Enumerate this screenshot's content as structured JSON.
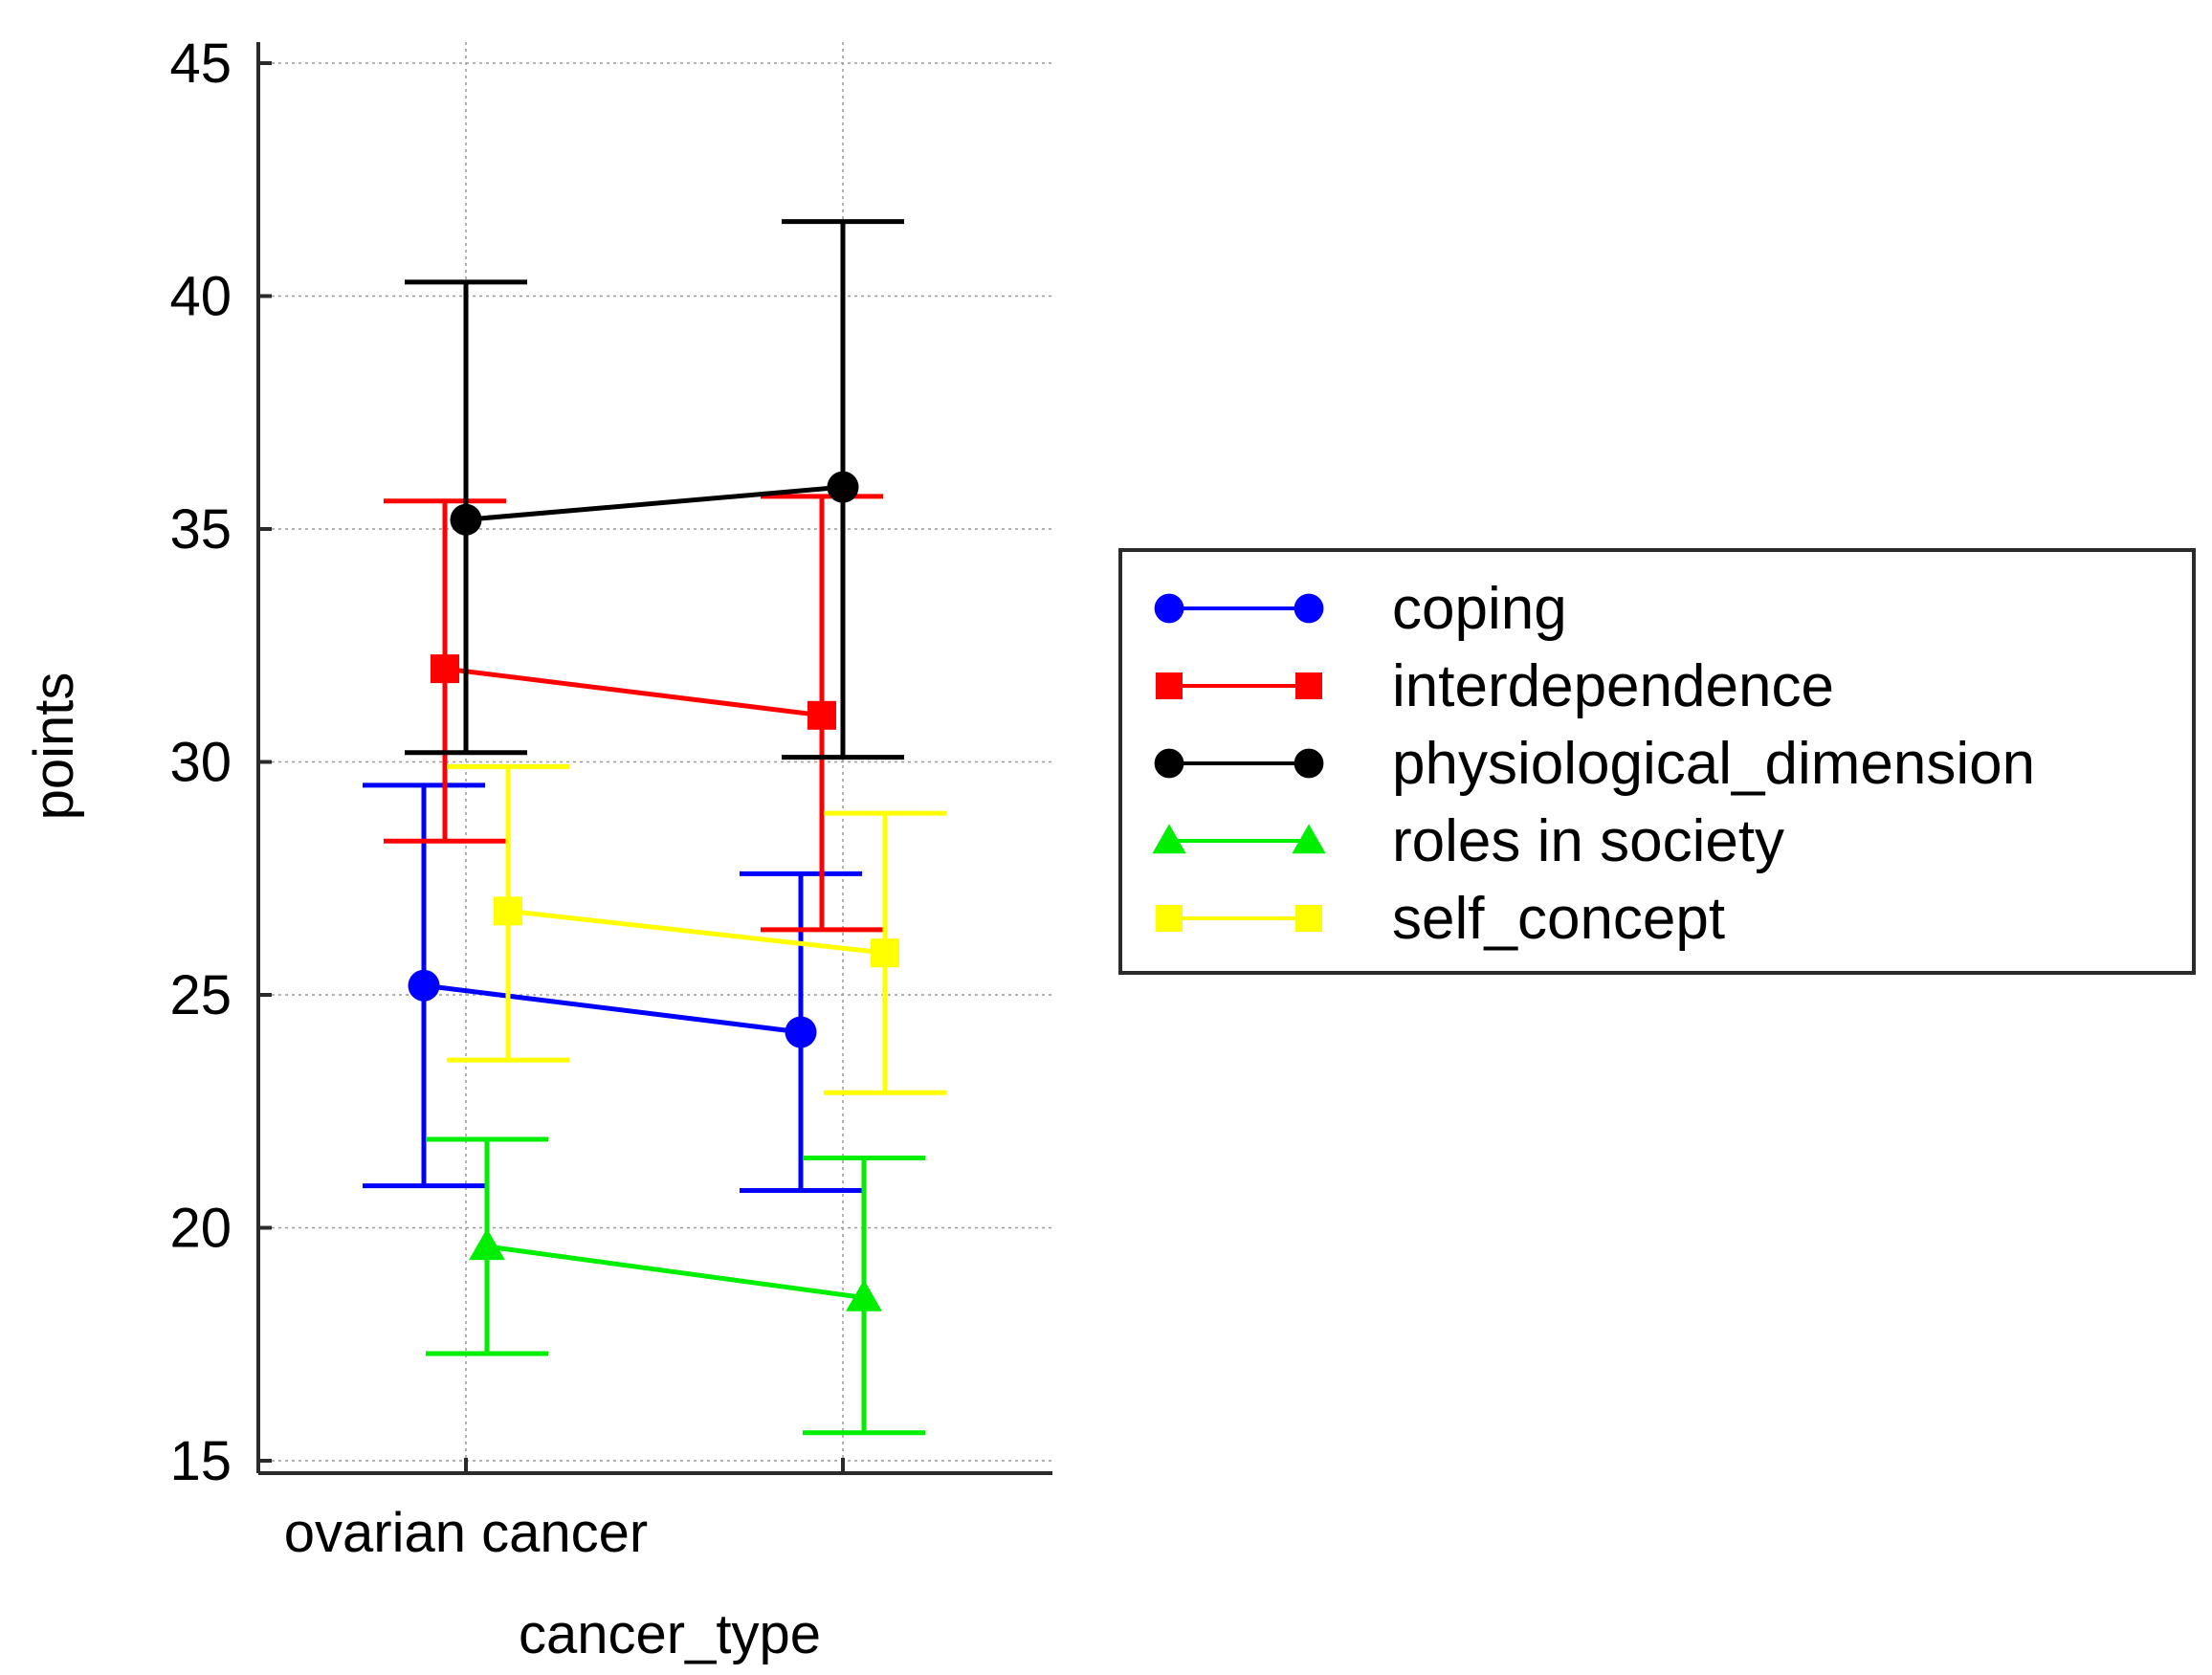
{
  "chart_data": {
    "type": "line",
    "title": "",
    "xlabel": "cancer_type",
    "ylabel": "points",
    "categories": [
      "ovarian cancer",
      ""
    ],
    "ylim": [
      15,
      45
    ],
    "yticks": [
      15,
      20,
      25,
      30,
      35,
      40,
      45
    ],
    "grid": true,
    "legend_position": "right",
    "error_bars": true,
    "series": [
      {
        "name": "coping",
        "color": "#0000ff",
        "marker": "circle",
        "offset_rank": 0,
        "values": [
          25.2,
          24.2
        ],
        "lower": [
          20.9,
          20.8
        ],
        "upper": [
          29.5,
          27.6
        ]
      },
      {
        "name": "interdependence",
        "color": "#ff0000",
        "marker": "square",
        "offset_rank": 1,
        "values": [
          32.0,
          31.0
        ],
        "lower": [
          28.3,
          26.4
        ],
        "upper": [
          35.6,
          35.7
        ]
      },
      {
        "name": "physiological_dimension",
        "color": "#000000",
        "marker": "circle",
        "offset_rank": 2,
        "values": [
          35.2,
          35.9
        ],
        "lower": [
          30.2,
          30.1
        ],
        "upper": [
          40.3,
          41.6
        ]
      },
      {
        "name": "roles in society",
        "color": "#00ee00",
        "marker": "triangle",
        "offset_rank": 3,
        "values": [
          19.6,
          18.5
        ],
        "lower": [
          17.3,
          15.6
        ],
        "upper": [
          21.9,
          21.5
        ]
      },
      {
        "name": "self_concept",
        "color": "#ffff00",
        "marker": "square",
        "offset_rank": 4,
        "values": [
          26.8,
          25.9
        ],
        "lower": [
          23.6,
          22.9
        ],
        "upper": [
          29.9,
          28.9
        ]
      }
    ]
  }
}
